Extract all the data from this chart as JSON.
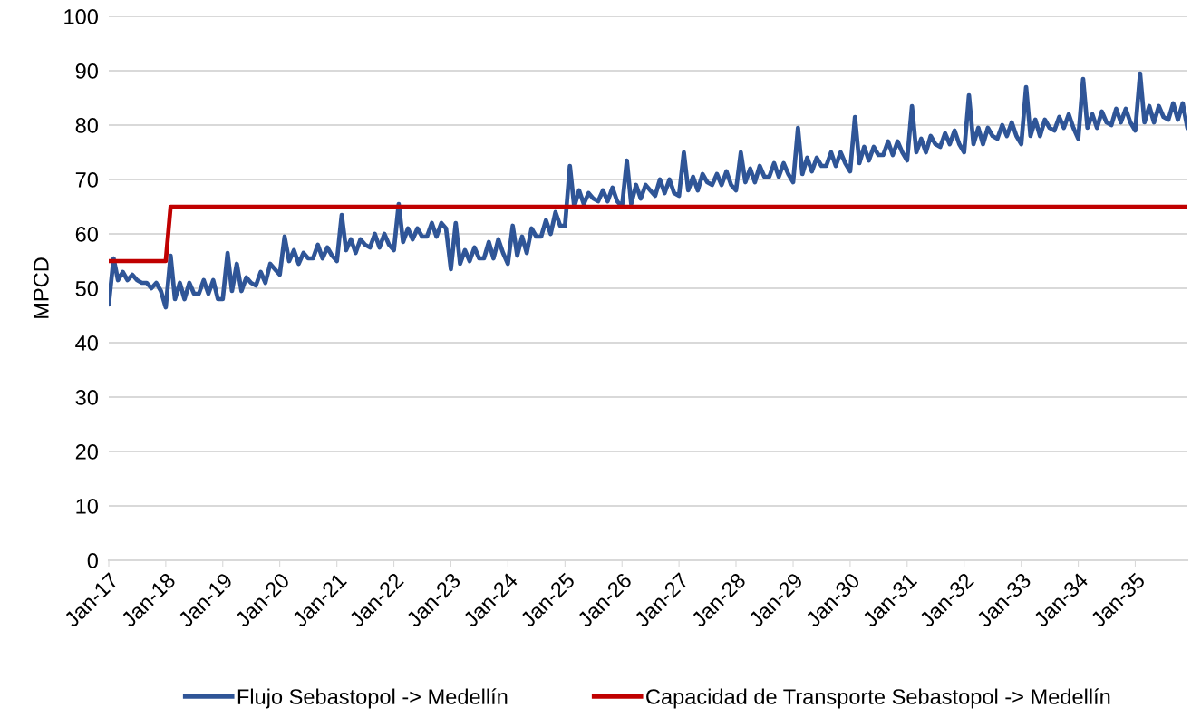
{
  "chart_data": {
    "type": "line",
    "ylabel": "MPCD",
    "ylim": [
      0,
      100
    ],
    "yticks": [
      0,
      10,
      20,
      30,
      40,
      50,
      60,
      70,
      80,
      90,
      100
    ],
    "xlim": [
      "2017-01",
      "2035-12"
    ],
    "xticks": [
      {
        "value": "2017-01",
        "label": "Jan-17"
      },
      {
        "value": "2018-01",
        "label": "Jan-18"
      },
      {
        "value": "2019-01",
        "label": "Jan-19"
      },
      {
        "value": "2020-01",
        "label": "Jan-20"
      },
      {
        "value": "2021-01",
        "label": "Jan-21"
      },
      {
        "value": "2022-01",
        "label": "Jan-22"
      },
      {
        "value": "2023-01",
        "label": "Jan-23"
      },
      {
        "value": "2024-01",
        "label": "Jan-24"
      },
      {
        "value": "2025-01",
        "label": "Jan-25"
      },
      {
        "value": "2026-01",
        "label": "Jan-26"
      },
      {
        "value": "2027-01",
        "label": "Jan-27"
      },
      {
        "value": "2028-01",
        "label": "Jan-28"
      },
      {
        "value": "2029-01",
        "label": "Jan-29"
      },
      {
        "value": "2030-01",
        "label": "Jan-30"
      },
      {
        "value": "2031-01",
        "label": "Jan-31"
      },
      {
        "value": "2032-01",
        "label": "Jan-32"
      },
      {
        "value": "2033-01",
        "label": "Jan-33"
      },
      {
        "value": "2034-01",
        "label": "Jan-34"
      },
      {
        "value": "2035-01",
        "label": "Jan-35"
      }
    ],
    "grid": "y",
    "legend": "bottom",
    "marker": "none",
    "line_style": "solid",
    "series": [
      {
        "name": "Flujo Sebastopol -> Medellín",
        "color": "#2f5597",
        "x": [
          "2017-01",
          "2017-02",
          "2017-03",
          "2017-04",
          "2017-05",
          "2017-06",
          "2017-07",
          "2017-08",
          "2017-09",
          "2017-10",
          "2017-11",
          "2017-12",
          "2018-01",
          "2018-02",
          "2018-03",
          "2018-04",
          "2018-05",
          "2018-06",
          "2018-07",
          "2018-08",
          "2018-09",
          "2018-10",
          "2018-11",
          "2018-12",
          "2019-01",
          "2019-02",
          "2019-03",
          "2019-04",
          "2019-05",
          "2019-06",
          "2019-07",
          "2019-08",
          "2019-09",
          "2019-10",
          "2019-11",
          "2019-12",
          "2020-01",
          "2020-02",
          "2020-03",
          "2020-04",
          "2020-05",
          "2020-06",
          "2020-07",
          "2020-08",
          "2020-09",
          "2020-10",
          "2020-11",
          "2020-12",
          "2021-01",
          "2021-02",
          "2021-03",
          "2021-04",
          "2021-05",
          "2021-06",
          "2021-07",
          "2021-08",
          "2021-09",
          "2021-10",
          "2021-11",
          "2021-12",
          "2022-01",
          "2022-02",
          "2022-03",
          "2022-04",
          "2022-05",
          "2022-06",
          "2022-07",
          "2022-08",
          "2022-09",
          "2022-10",
          "2022-11",
          "2022-12",
          "2023-01",
          "2023-02",
          "2023-03",
          "2023-04",
          "2023-05",
          "2023-06",
          "2023-07",
          "2023-08",
          "2023-09",
          "2023-10",
          "2023-11",
          "2023-12",
          "2024-01",
          "2024-02",
          "2024-03",
          "2024-04",
          "2024-05",
          "2024-06",
          "2024-07",
          "2024-08",
          "2024-09",
          "2024-10",
          "2024-11",
          "2024-12",
          "2025-01",
          "2025-02",
          "2025-03",
          "2025-04",
          "2025-05",
          "2025-06",
          "2025-07",
          "2025-08",
          "2025-09",
          "2025-10",
          "2025-11",
          "2025-12",
          "2026-01",
          "2026-02",
          "2026-03",
          "2026-04",
          "2026-05",
          "2026-06",
          "2026-07",
          "2026-08",
          "2026-09",
          "2026-10",
          "2026-11",
          "2026-12",
          "2027-01",
          "2027-02",
          "2027-03",
          "2027-04",
          "2027-05",
          "2027-06",
          "2027-07",
          "2027-08",
          "2027-09",
          "2027-10",
          "2027-11",
          "2027-12",
          "2028-01",
          "2028-02",
          "2028-03",
          "2028-04",
          "2028-05",
          "2028-06",
          "2028-07",
          "2028-08",
          "2028-09",
          "2028-10",
          "2028-11",
          "2028-12",
          "2029-01",
          "2029-02",
          "2029-03",
          "2029-04",
          "2029-05",
          "2029-06",
          "2029-07",
          "2029-08",
          "2029-09",
          "2029-10",
          "2029-11",
          "2029-12",
          "2030-01",
          "2030-02",
          "2030-03",
          "2030-04",
          "2030-05",
          "2030-06",
          "2030-07",
          "2030-08",
          "2030-09",
          "2030-10",
          "2030-11",
          "2030-12",
          "2031-01",
          "2031-02",
          "2031-03",
          "2031-04",
          "2031-05",
          "2031-06",
          "2031-07",
          "2031-08",
          "2031-09",
          "2031-10",
          "2031-11",
          "2031-12",
          "2032-01",
          "2032-02",
          "2032-03",
          "2032-04",
          "2032-05",
          "2032-06",
          "2032-07",
          "2032-08",
          "2032-09",
          "2032-10",
          "2032-11",
          "2032-12",
          "2033-01",
          "2033-02",
          "2033-03",
          "2033-04",
          "2033-05",
          "2033-06",
          "2033-07",
          "2033-08",
          "2033-09",
          "2033-10",
          "2033-11",
          "2033-12",
          "2034-01",
          "2034-02",
          "2034-03",
          "2034-04",
          "2034-05",
          "2034-06",
          "2034-07",
          "2034-08",
          "2034-09",
          "2034-10",
          "2034-11",
          "2034-12",
          "2035-01",
          "2035-02",
          "2035-03",
          "2035-04",
          "2035-05",
          "2035-06",
          "2035-07",
          "2035-08",
          "2035-09",
          "2035-10",
          "2035-11",
          "2035-12"
        ],
        "values": [
          47,
          55.5,
          51.5,
          53,
          51.5,
          52.5,
          51.5,
          51,
          51,
          50,
          51,
          49.5,
          46.5,
          56,
          48,
          51,
          48,
          51,
          49,
          49,
          51.5,
          49,
          51.5,
          48,
          48,
          56.5,
          49.5,
          54.5,
          49.5,
          52,
          51,
          50.5,
          53,
          51,
          54.5,
          53.5,
          52.5,
          59.5,
          55,
          57,
          54.5,
          56.5,
          55.5,
          55.5,
          58,
          55.5,
          57.5,
          56,
          55,
          63.5,
          57,
          59,
          56.5,
          59,
          58,
          57.5,
          60,
          57.5,
          60,
          58,
          57,
          65.5,
          58.5,
          61,
          59,
          61,
          59.5,
          59.5,
          62,
          59.5,
          62,
          61,
          53.5,
          62,
          54.5,
          57,
          55,
          57.5,
          55.5,
          55.5,
          58.5,
          55.5,
          59,
          56.5,
          54.5,
          61.5,
          56,
          59.5,
          56.5,
          61,
          59.5,
          59.5,
          62.5,
          60,
          64,
          61.5,
          61.5,
          72.5,
          65,
          68,
          65.5,
          67.5,
          66.5,
          66,
          68,
          66,
          68.5,
          66,
          65,
          73.5,
          65.5,
          69,
          66.5,
          69,
          68,
          67,
          70,
          67.5,
          70,
          67.5,
          67,
          75,
          68,
          70.5,
          68,
          71,
          69.5,
          69,
          71,
          69,
          71.5,
          69,
          68,
          75,
          69.5,
          72,
          69.5,
          72.5,
          70.5,
          70.5,
          73,
          70.5,
          73,
          71,
          69.5,
          79.5,
          71,
          74,
          71.5,
          74,
          72.5,
          72.5,
          75,
          72.5,
          75,
          73,
          71.5,
          81.5,
          73,
          76,
          73.5,
          76,
          74.5,
          74.5,
          77,
          74.5,
          77,
          75,
          73.5,
          83.5,
          75,
          77.5,
          75,
          78,
          76.5,
          76,
          78.5,
          76.5,
          79,
          76.5,
          75,
          85.5,
          76.5,
          79.5,
          76.5,
          79.5,
          78,
          77.5,
          80,
          78,
          80.5,
          78,
          76.5,
          87,
          78,
          81,
          78,
          81,
          79.5,
          79,
          81.5,
          79.5,
          82,
          79.5,
          77.5,
          88.5,
          79.5,
          82,
          79.5,
          82.5,
          80.5,
          80,
          83,
          80.5,
          83,
          80.5,
          79,
          89.5,
          80.5,
          83.5,
          80.5,
          83.5,
          81.5,
          81,
          84,
          81,
          84,
          79.5
        ]
      },
      {
        "name": "Capacidad de Transporte Sebastopol -> Medellín",
        "color": "#c00000",
        "x": [
          "2017-01",
          "2018-01",
          "2018-02",
          "2035-12"
        ],
        "values": [
          55,
          55,
          65,
          65
        ]
      }
    ]
  }
}
